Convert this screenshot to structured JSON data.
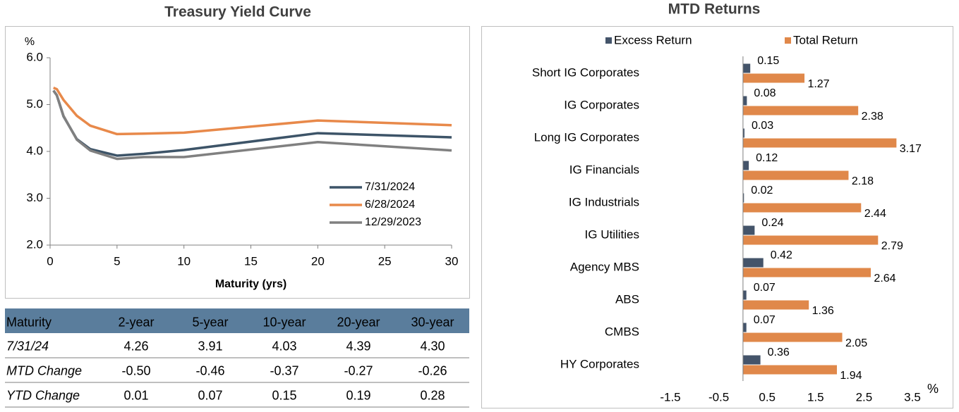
{
  "chart_data": [
    {
      "type": "line",
      "title": "Treasury Yield Curve",
      "y_unit": "%",
      "x_label": "Maturity (yrs)",
      "x": [
        0.25,
        0.5,
        1,
        2,
        3,
        5,
        7,
        10,
        20,
        30
      ],
      "series": [
        {
          "name": "7/31/2024",
          "color": "#3d5468",
          "values": [
            5.3,
            5.2,
            4.75,
            4.26,
            4.05,
            3.91,
            3.95,
            4.03,
            4.39,
            4.3
          ]
        },
        {
          "name": "6/28/2024",
          "color": "#e8894a",
          "values": [
            5.36,
            5.33,
            5.1,
            4.76,
            4.55,
            4.37,
            4.38,
            4.4,
            4.66,
            4.56
          ]
        },
        {
          "name": "12/29/2023",
          "color": "#808080",
          "values": [
            5.3,
            5.2,
            4.76,
            4.25,
            4.02,
            3.84,
            3.88,
            3.88,
            4.2,
            4.02
          ]
        }
      ],
      "xlim": [
        0,
        30
      ],
      "xticks": [
        0,
        5,
        10,
        15,
        20,
        25,
        30
      ],
      "ylim": [
        2,
        6
      ],
      "yticks": [
        {
          "value": 2,
          "label": "2.0"
        },
        {
          "value": 3,
          "label": "3.0"
        },
        {
          "value": 4,
          "label": "4.0"
        },
        {
          "value": 5,
          "label": "5.0"
        },
        {
          "value": 6,
          "label": "6.0"
        }
      ],
      "legend": "lower-right"
    },
    {
      "type": "bar",
      "orientation": "horizontal",
      "title": "MTD Returns",
      "x_unit": "%",
      "categories": [
        "Short IG Corporates",
        "IG Corporates",
        "Long IG Corporates",
        "IG Financials",
        "IG Industrials",
        "IG Utilities",
        "Agency MBS",
        "ABS",
        "CMBS",
        "HY Corporates"
      ],
      "series": [
        {
          "name": "Excess Return",
          "color": "#44546a",
          "values": [
            0.15,
            0.08,
            0.03,
            0.12,
            0.02,
            0.24,
            0.42,
            0.07,
            0.07,
            0.36
          ]
        },
        {
          "name": "Total Return",
          "color": "#e0884a",
          "values": [
            1.27,
            2.38,
            3.17,
            2.18,
            2.44,
            2.79,
            2.64,
            1.36,
            2.05,
            1.94
          ]
        }
      ],
      "xlim": [
        -1.5,
        3.5
      ],
      "xticks": [
        -1.5,
        -0.5,
        0.5,
        1.5,
        2.5,
        3.5
      ],
      "legend": "top"
    }
  ],
  "table": {
    "header": [
      "Maturity",
      "2-year",
      "5-year",
      "10-year",
      "20-year",
      "30-year"
    ],
    "rows": [
      [
        "7/31/24",
        "4.26",
        "3.91",
        "4.03",
        "4.39",
        "4.30"
      ],
      [
        "MTD Change",
        "-0.50",
        "-0.46",
        "-0.37",
        "-0.27",
        "-0.26"
      ],
      [
        "YTD Change",
        "0.01",
        "0.07",
        "0.15",
        "0.19",
        "0.28"
      ]
    ]
  }
}
